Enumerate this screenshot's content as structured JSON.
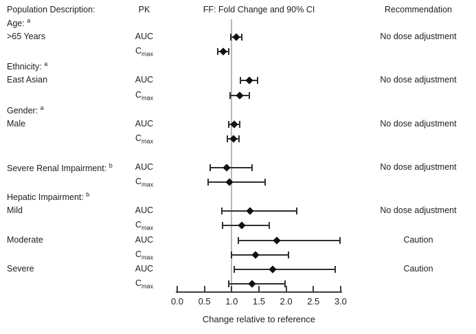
{
  "title_row": {
    "population": "Population Description:",
    "pk": "PK",
    "plot": "FF: Fold Change and 90% CI",
    "recommendation": "Recommendation"
  },
  "axis": {
    "title": "Change relative to reference",
    "tick_labels": [
      "0.0",
      "0.5",
      "1.0",
      "1.5",
      "2.0",
      "2.5",
      "3.0"
    ]
  },
  "colors": {
    "text": "#1e1e1e",
    "reference_line": "#b8b8b8",
    "whisker": "#2e2e2e",
    "diamond": "#111111",
    "axis": "#3c3c3c"
  },
  "chart_data": {
    "type": "forest",
    "title": "FF: Fold Change and 90% CI",
    "xlabel": "Change relative to reference",
    "xlim": [
      0,
      3
    ],
    "xticks": [
      0,
      0.5,
      1,
      1.5,
      2,
      2.5,
      3
    ],
    "reference_line": 1.0,
    "grid": false,
    "rows": [
      {
        "kind": "group",
        "label": "Age:",
        "footnote": "a"
      },
      {
        "kind": "data",
        "label": ">65 Years",
        "pk": "AUC",
        "value": 1.08,
        "ci": [
          0.98,
          1.18
        ],
        "recommendation": "No dose adjustment"
      },
      {
        "kind": "data",
        "label": "",
        "pk": "C_max",
        "value": 0.85,
        "ci": [
          0.75,
          0.94
        ],
        "recommendation": ""
      },
      {
        "kind": "group",
        "label": "Ethnicity:",
        "footnote": "a"
      },
      {
        "kind": "data",
        "label": "East Asian",
        "pk": "AUC",
        "value": 1.32,
        "ci": [
          1.16,
          1.47
        ],
        "recommendation": "No dose adjustment"
      },
      {
        "kind": "data",
        "label": "",
        "pk": "C_max",
        "value": 1.15,
        "ci": [
          0.97,
          1.32
        ],
        "recommendation": ""
      },
      {
        "kind": "group",
        "label": "Gender:",
        "footnote": "a"
      },
      {
        "kind": "data",
        "label": "Male",
        "pk": "AUC",
        "value": 1.05,
        "ci": [
          0.95,
          1.15
        ],
        "recommendation": "No dose adjustment"
      },
      {
        "kind": "data",
        "label": "",
        "pk": "C_max",
        "value": 1.03,
        "ci": [
          0.92,
          1.14
        ],
        "recommendation": ""
      },
      {
        "kind": "spacer"
      },
      {
        "kind": "data",
        "label": "Severe Renal Impairment:",
        "footnote": "b",
        "pk": "AUC",
        "value": 0.91,
        "ci": [
          0.61,
          1.37
        ],
        "recommendation": "No dose adjustment"
      },
      {
        "kind": "data",
        "label": "",
        "pk": "C_max",
        "value": 0.96,
        "ci": [
          0.57,
          1.61
        ],
        "recommendation": ""
      },
      {
        "kind": "group",
        "label": "Hepatic Impairment:",
        "footnote": "b"
      },
      {
        "kind": "data",
        "label": "Mild",
        "pk": "AUC",
        "value": 1.34,
        "ci": [
          0.82,
          2.19
        ],
        "recommendation": "No dose adjustment"
      },
      {
        "kind": "data",
        "label": "",
        "pk": "C_max",
        "value": 1.19,
        "ci": [
          0.83,
          1.69
        ],
        "recommendation": ""
      },
      {
        "kind": "data",
        "label": "Moderate",
        "pk": "AUC",
        "value": 1.83,
        "ci": [
          1.12,
          2.99
        ],
        "recommendation": "Caution"
      },
      {
        "kind": "data",
        "label": "",
        "pk": "C_max",
        "value": 1.44,
        "ci": [
          1.0,
          2.04
        ],
        "recommendation": ""
      },
      {
        "kind": "data",
        "label": "Severe",
        "pk": "AUC",
        "value": 1.75,
        "ci": [
          1.05,
          2.9
        ],
        "recommendation": "Caution"
      },
      {
        "kind": "data",
        "label": "",
        "pk": "C_max",
        "value": 1.37,
        "ci": [
          0.95,
          1.98
        ],
        "recommendation": ""
      }
    ]
  }
}
